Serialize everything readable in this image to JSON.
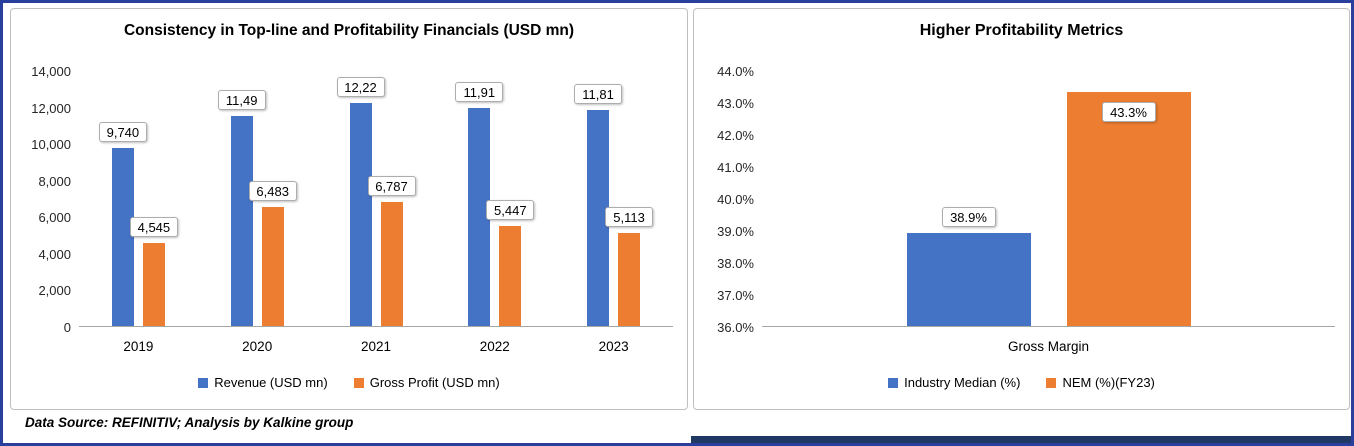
{
  "footer": {
    "text": "Data Source: REFINITIV; Analysis by Kalkine group"
  },
  "colors": {
    "blue": "#4472C4",
    "orange": "#ED7D31",
    "frame_border": "#2A3F9D",
    "bottom_bar": "#203864"
  },
  "chart_data": [
    {
      "type": "bar",
      "title": "Consistency in Top-line and Profitability Financials (USD mn)",
      "categories": [
        "2019",
        "2020",
        "2021",
        "2022",
        "2023"
      ],
      "series": [
        {
          "name": "Revenue (USD mn)",
          "color": "#4472C4",
          "values": [
            9740,
            11490,
            12220,
            11910,
            11810
          ],
          "labels": [
            "9,740",
            "11,49",
            "12,22",
            "11,91",
            "11,81"
          ]
        },
        {
          "name": "Gross Profit (USD mn)",
          "color": "#ED7D31",
          "values": [
            4545,
            6483,
            6787,
            5447,
            5113
          ],
          "labels": [
            "4,545",
            "6,483",
            "6,787",
            "5,447",
            "5,113"
          ]
        }
      ],
      "ylim": [
        0,
        14000
      ],
      "yticks": [
        "14,000",
        "12,000",
        "10,000",
        "8,000",
        "6,000",
        "4,000",
        "2,000",
        "0"
      ],
      "grid": false,
      "legend_position": "bottom"
    },
    {
      "type": "bar",
      "title": "Higher Profitability Metrics",
      "categories": [
        "Gross Margin"
      ],
      "series": [
        {
          "name": "Industry Median (%)",
          "color": "#4472C4",
          "values": [
            38.9
          ],
          "labels": [
            "38.9%"
          ]
        },
        {
          "name": "NEM (%)(FY23)",
          "color": "#ED7D31",
          "values": [
            43.3
          ],
          "labels": [
            "43.3%"
          ]
        }
      ],
      "ylim": [
        36,
        44
      ],
      "yticks": [
        "44.0%",
        "43.0%",
        "42.0%",
        "41.0%",
        "40.0%",
        "39.0%",
        "38.0%",
        "37.0%",
        "36.0%"
      ],
      "grid": false,
      "legend_position": "bottom"
    }
  ]
}
